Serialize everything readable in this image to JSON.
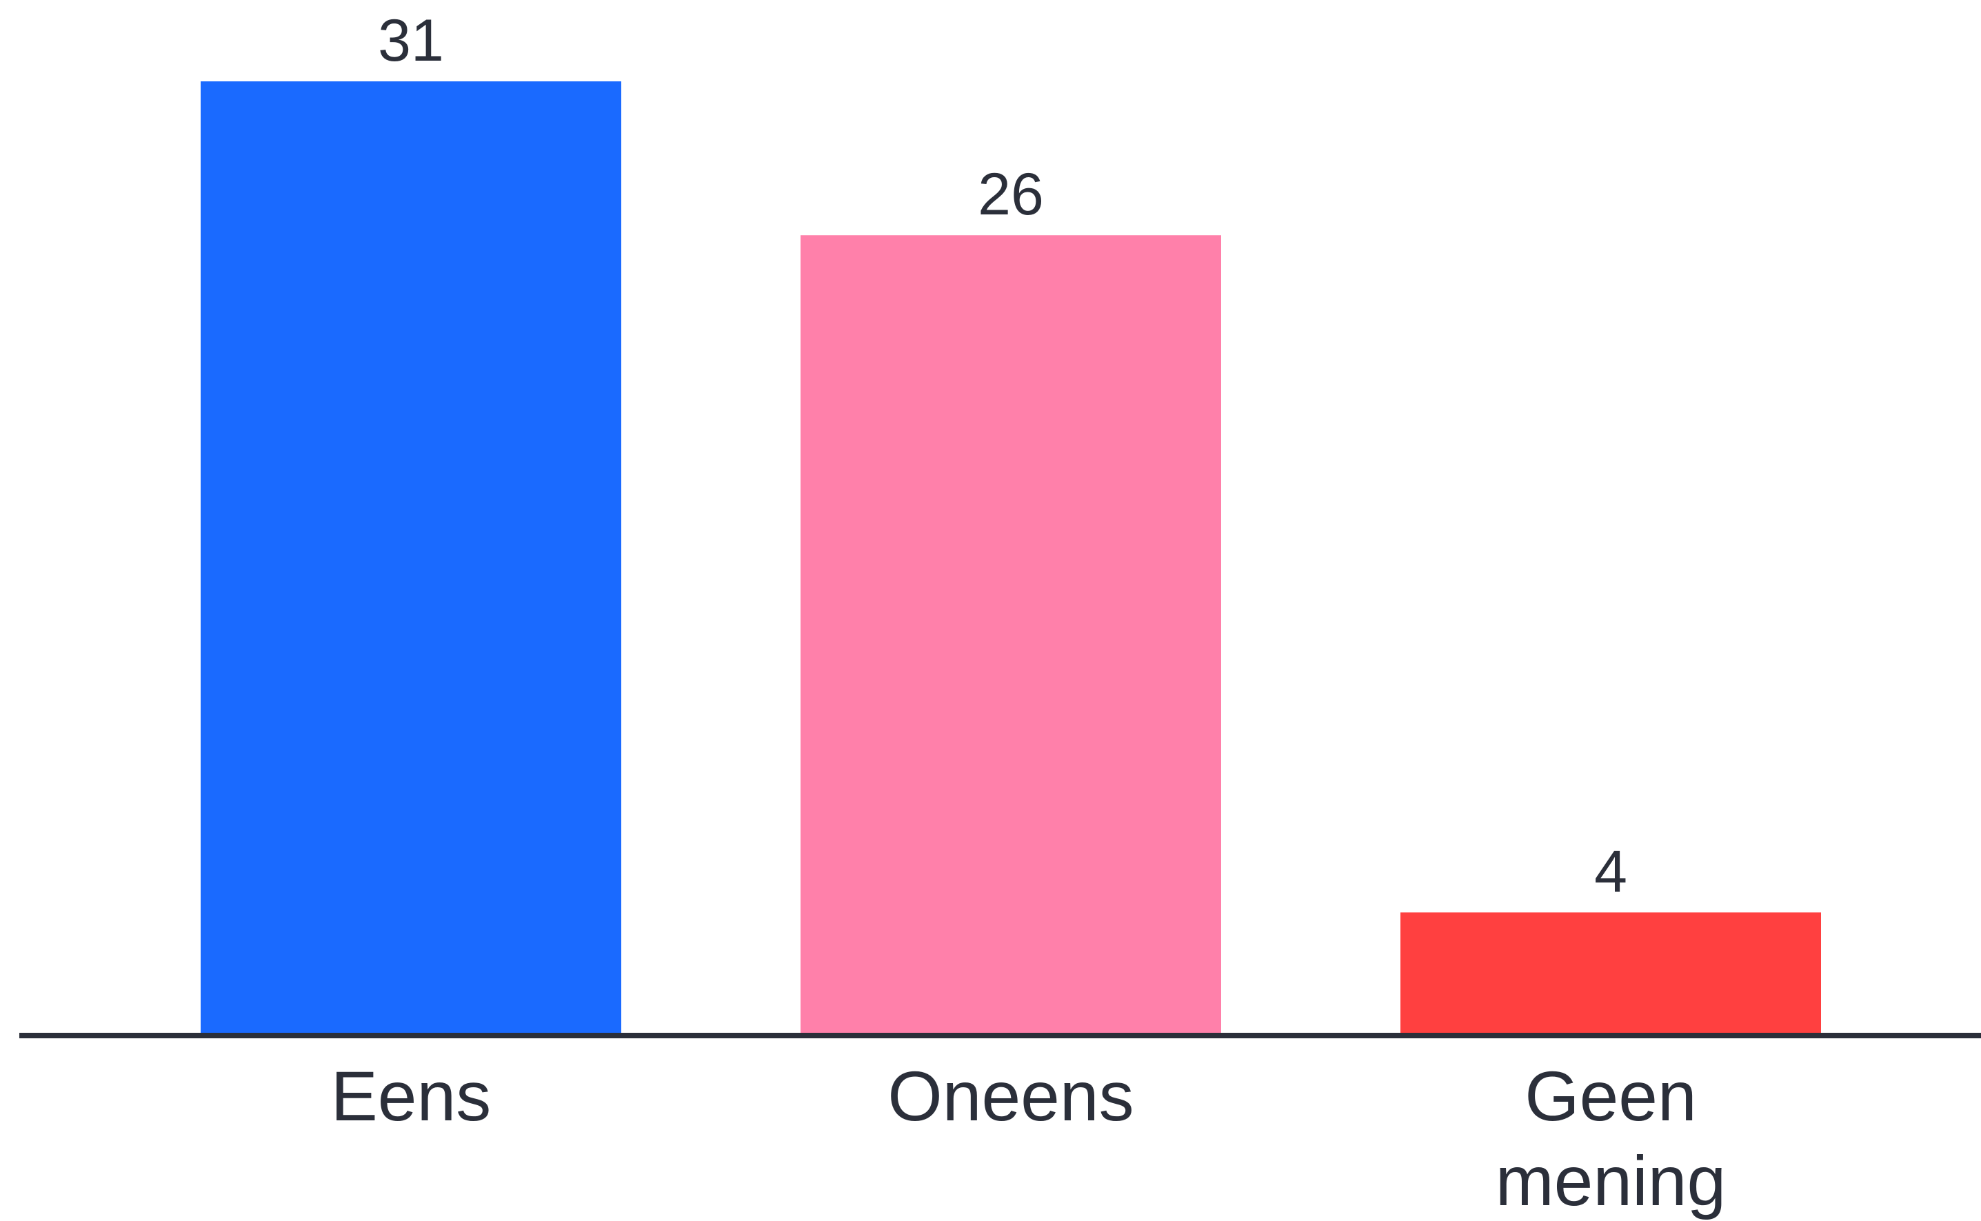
{
  "chart_data": {
    "type": "bar",
    "categories": [
      [
        "Eens"
      ],
      [
        "Oneens"
      ],
      [
        "Geen",
        "mening"
      ]
    ],
    "values": [
      31,
      26,
      4
    ],
    "data_labels": [
      "31",
      "26",
      "4"
    ],
    "colors": [
      "#1a6aff",
      "#ff80aa",
      "#ff4040"
    ],
    "axis_color": "#2b2f3a",
    "ylim": [
      0,
      31
    ],
    "grid": false,
    "title": "",
    "xlabel": "",
    "ylabel": ""
  }
}
